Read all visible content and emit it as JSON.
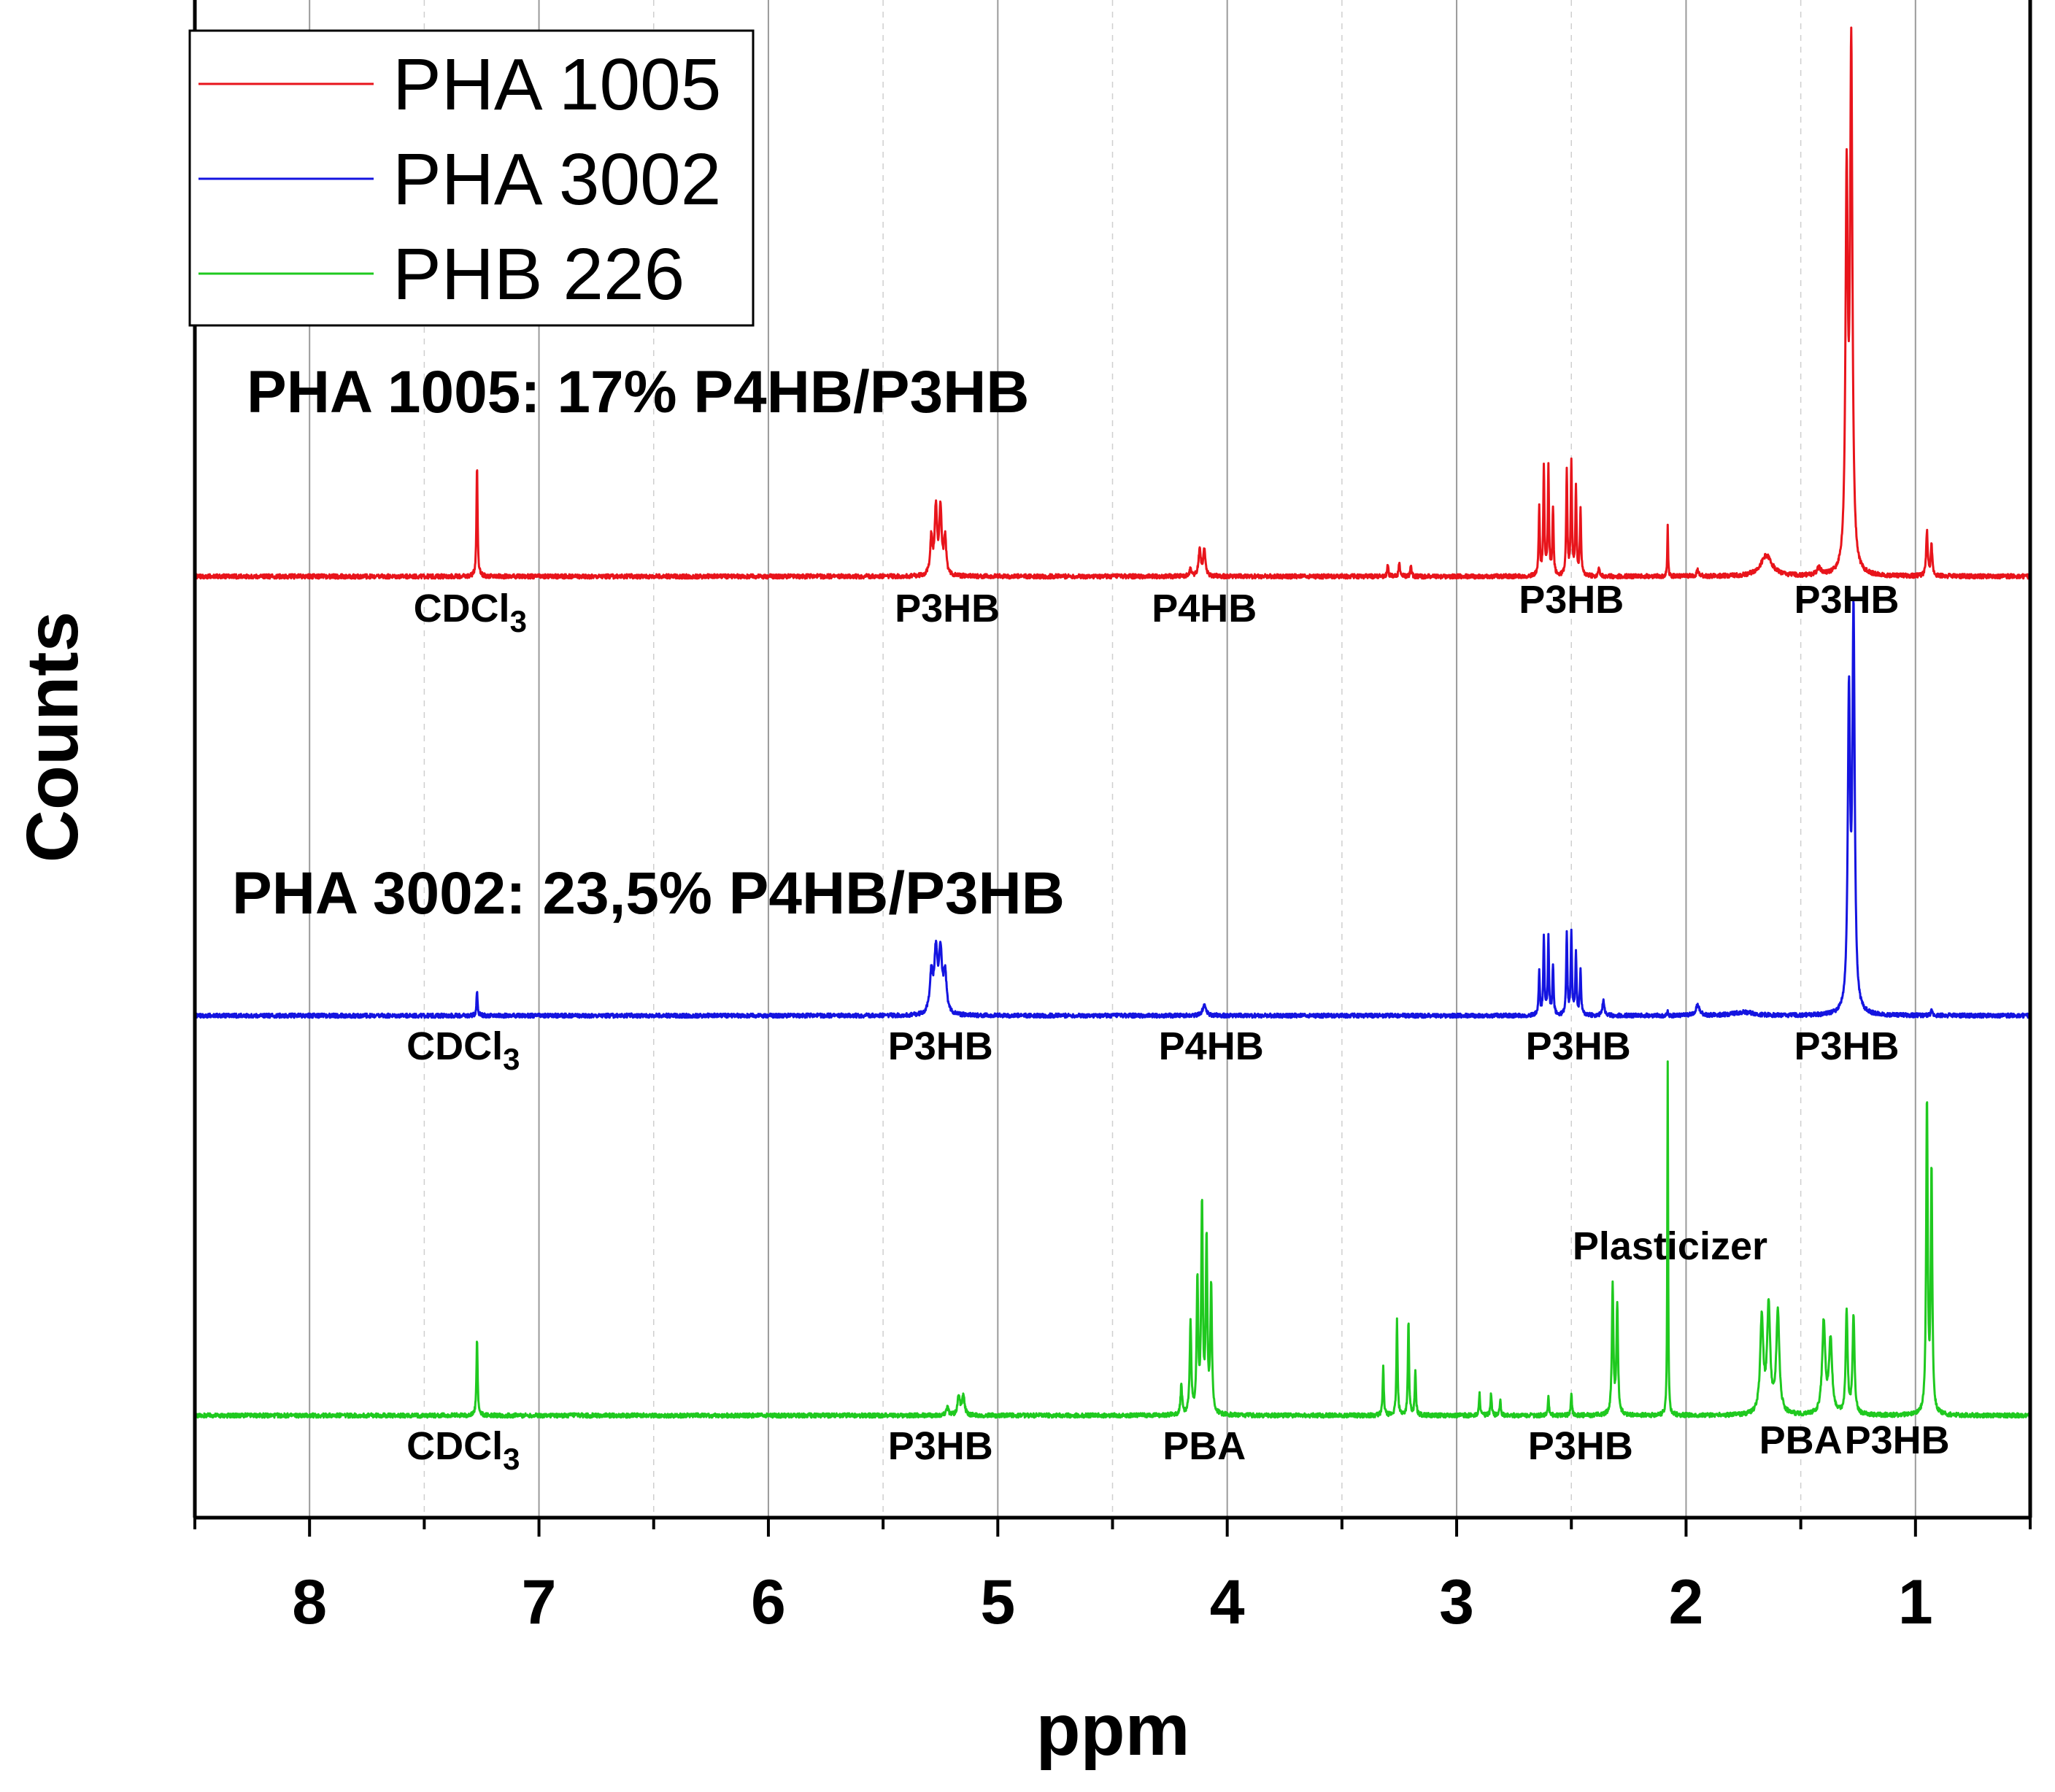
{
  "chart_data": {
    "type": "line",
    "xlabel": "ppm",
    "ylabel": "Counts",
    "xlim": [
      8.5,
      0.5
    ],
    "x_reversed": true,
    "xticks": [
      8,
      7,
      6,
      5,
      4,
      3,
      2,
      1
    ],
    "xtick_labels": [
      "8",
      "7",
      "6",
      "5",
      "4",
      "3",
      "2",
      "1"
    ],
    "grid": {
      "major_x": true,
      "minor_x_dashed": true,
      "y": false
    },
    "legend": {
      "position": "top-left",
      "entries": [
        {
          "label": "PHA 1005",
          "color": "#e8141b"
        },
        {
          "label": "PHA 3002",
          "color": "#1414e0"
        },
        {
          "label": "PHB 226",
          "color": "#1fc91f"
        }
      ]
    },
    "series": [
      {
        "name": "PHA 1005",
        "color": "#e8141b",
        "baseline_counts": 0,
        "title": "PHA 1005: 17% P4HB/P3HB",
        "peaks": [
          {
            "ppm": 7.27,
            "counts": 150,
            "width": 0.003
          },
          {
            "ppm": 5.29,
            "counts": 50,
            "width": 0.006
          },
          {
            "ppm": 5.27,
            "counts": 90,
            "width": 0.006
          },
          {
            "ppm": 5.25,
            "counts": 90,
            "width": 0.006
          },
          {
            "ppm": 5.23,
            "counts": 50,
            "width": 0.006
          },
          {
            "ppm": 4.12,
            "counts": 35,
            "width": 0.006
          },
          {
            "ppm": 4.1,
            "counts": 35,
            "width": 0.006
          },
          {
            "ppm": 4.16,
            "counts": 12,
            "width": 0.004
          },
          {
            "ppm": 3.3,
            "counts": 15,
            "width": 0.003
          },
          {
            "ppm": 3.25,
            "counts": 20,
            "width": 0.003
          },
          {
            "ppm": 3.2,
            "counts": 15,
            "width": 0.003
          },
          {
            "ppm": 2.64,
            "counts": 90,
            "width": 0.003
          },
          {
            "ppm": 2.62,
            "counts": 145,
            "width": 0.003
          },
          {
            "ppm": 2.6,
            "counts": 145,
            "width": 0.003
          },
          {
            "ppm": 2.58,
            "counts": 90,
            "width": 0.003
          },
          {
            "ppm": 2.52,
            "counts": 140,
            "width": 0.003
          },
          {
            "ppm": 2.5,
            "counts": 155,
            "width": 0.003
          },
          {
            "ppm": 2.48,
            "counts": 120,
            "width": 0.003
          },
          {
            "ppm": 2.46,
            "counts": 90,
            "width": 0.003
          },
          {
            "ppm": 2.38,
            "counts": 12,
            "width": 0.003
          },
          {
            "ppm": 2.08,
            "counts": 70,
            "width": 0.002
          },
          {
            "ppm": 1.95,
            "counts": 8,
            "width": 0.005
          },
          {
            "ppm": 1.65,
            "counts": 28,
            "width": 0.03
          },
          {
            "ppm": 1.42,
            "counts": 10,
            "width": 0.01
          },
          {
            "ppm": 1.3,
            "counts": 520,
            "width": 0.006
          },
          {
            "ppm": 1.28,
            "counts": 700,
            "width": 0.006
          },
          {
            "ppm": 0.95,
            "counts": 60,
            "width": 0.004
          },
          {
            "ppm": 0.93,
            "counts": 40,
            "width": 0.004
          }
        ]
      },
      {
        "name": "PHA 3002",
        "color": "#1414e0",
        "baseline_counts": 0,
        "title": "PHA 3002: 23,5% P4HB/P3HB",
        "peaks": [
          {
            "ppm": 7.27,
            "counts": 35,
            "width": 0.003
          },
          {
            "ppm": 5.29,
            "counts": 55,
            "width": 0.008
          },
          {
            "ppm": 5.27,
            "counts": 85,
            "width": 0.008
          },
          {
            "ppm": 5.25,
            "counts": 85,
            "width": 0.008
          },
          {
            "ppm": 5.23,
            "counts": 55,
            "width": 0.008
          },
          {
            "ppm": 4.1,
            "counts": 15,
            "width": 0.01
          },
          {
            "ppm": 2.64,
            "counts": 60,
            "width": 0.003
          },
          {
            "ppm": 2.62,
            "counts": 110,
            "width": 0.003
          },
          {
            "ppm": 2.6,
            "counts": 110,
            "width": 0.003
          },
          {
            "ppm": 2.58,
            "counts": 70,
            "width": 0.003
          },
          {
            "ppm": 2.52,
            "counts": 115,
            "width": 0.003
          },
          {
            "ppm": 2.5,
            "counts": 120,
            "width": 0.003
          },
          {
            "ppm": 2.48,
            "counts": 90,
            "width": 0.003
          },
          {
            "ppm": 2.46,
            "counts": 65,
            "width": 0.003
          },
          {
            "ppm": 2.36,
            "counts": 22,
            "width": 0.005
          },
          {
            "ppm": 2.08,
            "counts": 8,
            "width": 0.002
          },
          {
            "ppm": 1.95,
            "counts": 14,
            "width": 0.01
          },
          {
            "ppm": 1.75,
            "counts": 5,
            "width": 0.05
          },
          {
            "ppm": 1.29,
            "counts": 440,
            "width": 0.006
          },
          {
            "ppm": 1.27,
            "counts": 560,
            "width": 0.006
          },
          {
            "ppm": 0.93,
            "counts": 6,
            "width": 0.004
          }
        ]
      },
      {
        "name": "PHB 226",
        "color": "#1fc91f",
        "baseline_counts": 0,
        "title": "",
        "peaks": [
          {
            "ppm": 7.27,
            "counts": 105,
            "width": 0.003
          },
          {
            "ppm": 5.22,
            "counts": 12,
            "width": 0.006
          },
          {
            "ppm": 5.17,
            "counts": 28,
            "width": 0.006
          },
          {
            "ppm": 5.15,
            "counts": 28,
            "width": 0.006
          },
          {
            "ppm": 4.2,
            "counts": 40,
            "width": 0.004
          },
          {
            "ppm": 4.16,
            "counts": 125,
            "width": 0.004
          },
          {
            "ppm": 4.13,
            "counts": 180,
            "width": 0.004
          },
          {
            "ppm": 4.11,
            "counts": 285,
            "width": 0.004
          },
          {
            "ppm": 4.09,
            "counts": 235,
            "width": 0.004
          },
          {
            "ppm": 4.07,
            "counts": 175,
            "width": 0.004
          },
          {
            "ppm": 3.32,
            "counts": 65,
            "width": 0.003
          },
          {
            "ppm": 3.26,
            "counts": 130,
            "width": 0.003
          },
          {
            "ppm": 3.21,
            "counts": 130,
            "width": 0.003
          },
          {
            "ppm": 3.18,
            "counts": 60,
            "width": 0.003
          },
          {
            "ppm": 2.9,
            "counts": 30,
            "width": 0.003
          },
          {
            "ppm": 2.85,
            "counts": 30,
            "width": 0.003
          },
          {
            "ppm": 2.81,
            "counts": 20,
            "width": 0.003
          },
          {
            "ppm": 2.6,
            "counts": 25,
            "width": 0.003
          },
          {
            "ppm": 2.5,
            "counts": 30,
            "width": 0.003
          },
          {
            "ppm": 2.32,
            "counts": 175,
            "width": 0.004
          },
          {
            "ppm": 2.3,
            "counts": 150,
            "width": 0.004
          },
          {
            "ppm": 2.08,
            "counts": 485,
            "width": 0.002
          },
          {
            "ppm": 1.67,
            "counts": 130,
            "width": 0.008
          },
          {
            "ppm": 1.64,
            "counts": 145,
            "width": 0.008
          },
          {
            "ppm": 1.6,
            "counts": 140,
            "width": 0.008
          },
          {
            "ppm": 1.4,
            "counts": 125,
            "width": 0.008
          },
          {
            "ppm": 1.37,
            "counts": 100,
            "width": 0.008
          },
          {
            "ppm": 1.3,
            "counts": 140,
            "width": 0.005
          },
          {
            "ppm": 1.27,
            "counts": 135,
            "width": 0.005
          },
          {
            "ppm": 0.95,
            "counts": 430,
            "width": 0.004
          },
          {
            "ppm": 0.93,
            "counts": 330,
            "width": 0.004
          }
        ]
      }
    ],
    "annotations": [
      {
        "series": "PHA 1005",
        "text": "CDCl",
        "sub": "3",
        "ppm": 7.3
      },
      {
        "series": "PHA 1005",
        "text": "P3HB",
        "ppm": 5.22
      },
      {
        "series": "PHA 1005",
        "text": "P4HB",
        "ppm": 4.1
      },
      {
        "series": "PHA 1005",
        "text": "P3HB",
        "ppm": 2.5
      },
      {
        "series": "PHA 1005",
        "text": "P3HB",
        "ppm": 1.3
      },
      {
        "series": "PHA 3002",
        "text": "CDCl",
        "sub": "3",
        "ppm": 7.33
      },
      {
        "series": "PHA 3002",
        "text": "P3HB",
        "ppm": 5.25
      },
      {
        "series": "PHA 3002",
        "text": "P4HB",
        "ppm": 4.07
      },
      {
        "series": "PHA 3002",
        "text": "P3HB",
        "ppm": 2.47
      },
      {
        "series": "PHA 3002",
        "text": "P3HB",
        "ppm": 1.3
      },
      {
        "series": "PHB 226",
        "text": "Plasticizer",
        "ppm": 2.07
      },
      {
        "series": "PHB 226",
        "text": "CDCl",
        "sub": "3",
        "ppm": 7.33
      },
      {
        "series": "PHB 226",
        "text": "P3HB",
        "ppm": 5.25
      },
      {
        "series": "PHB 226",
        "text": "PBA",
        "ppm": 4.1
      },
      {
        "series": "PHB 226",
        "text": "P3HB",
        "ppm": 2.46
      },
      {
        "series": "PHB 226",
        "text": "PBA",
        "ppm": 1.5
      },
      {
        "series": "PHB 226",
        "text": "P3HB",
        "ppm": 1.08
      }
    ]
  }
}
